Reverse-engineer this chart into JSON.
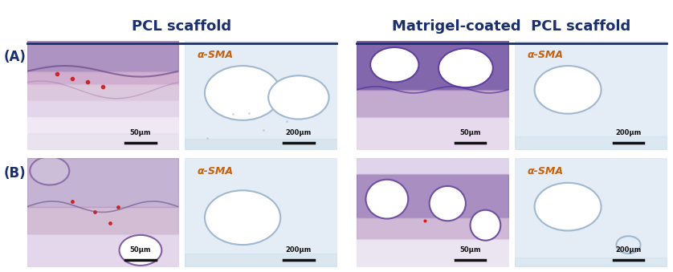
{
  "title_left": "PCL scaffold",
  "title_right": "Matrigel-coated  PCL scaffold",
  "title_color": "#1a2f6e",
  "title_fontsize": 13,
  "label_A": "(A)",
  "label_B": "(B)",
  "label_color": "#1a2f6e",
  "label_fontsize": 12,
  "alpha_sma_label": "α-SMA",
  "alpha_sma_color": "#c8600a",
  "alpha_sma_fontsize": 9,
  "scalebar_50": "50μm",
  "scalebar_200": "200μm",
  "scalebar_color": "#111111",
  "line_color": "#1a2f6e",
  "line_width": 2.0,
  "bg_color": "#ffffff",
  "panel_bg_A1": "#e8dce8",
  "panel_bg_A2": "#dce8f0",
  "panel_bg_A3": "#c8b8d8",
  "panel_bg_A4": "#d8e8f4",
  "panel_bg_B1": "#d0c8e0",
  "panel_bg_B2": "#dce8f0",
  "panel_bg_B3": "#ccc0d8",
  "panel_bg_B4": "#d8e8f4"
}
